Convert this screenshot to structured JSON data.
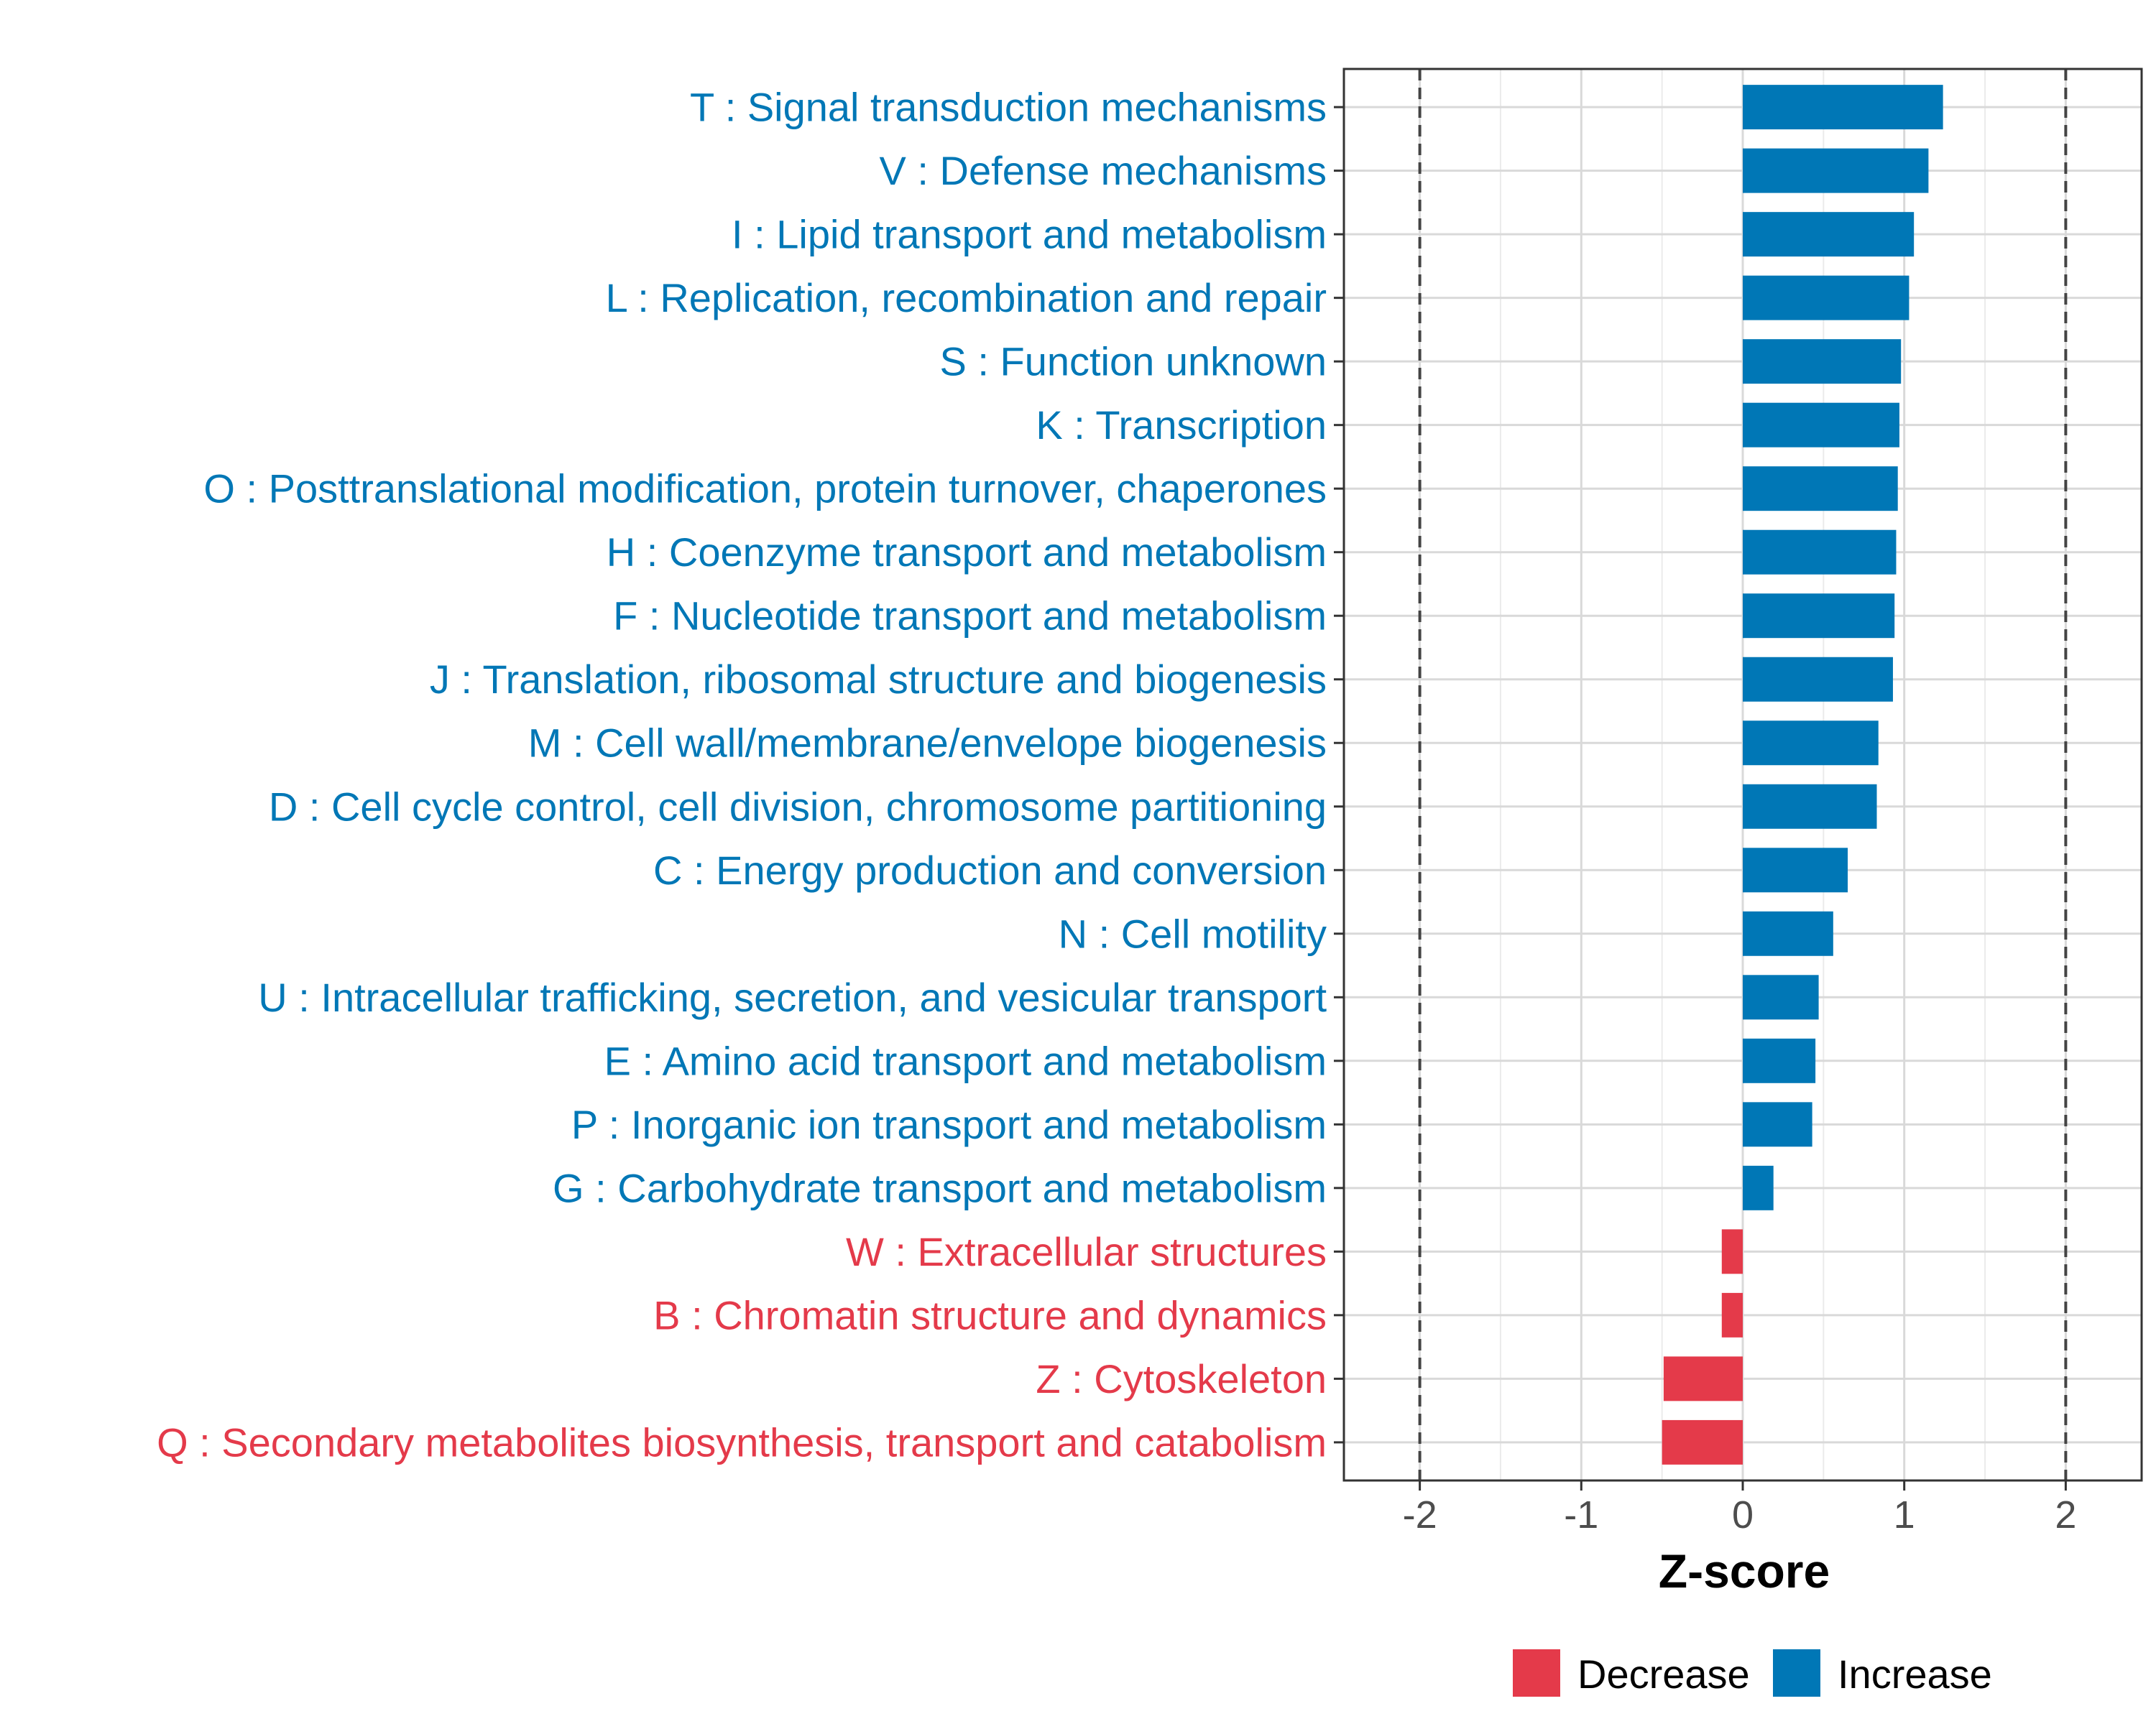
{
  "chart_data": {
    "type": "bar",
    "orientation": "horizontal",
    "xlabel": "Z-score",
    "ylabel": "",
    "xlim": [
      -2.47,
      2.47
    ],
    "x_ticks": [
      -2,
      -1,
      0,
      1,
      2
    ],
    "x_tick_labels": [
      "-2",
      "-1",
      "0",
      "1",
      "2"
    ],
    "reference_lines": [
      -2,
      2
    ],
    "grid": true,
    "categories": [
      "T : Signal transduction mechanisms",
      "V : Defense mechanisms",
      "I : Lipid transport and metabolism",
      "L : Replication, recombination and repair",
      "S : Function unknown",
      "K : Transcription",
      "O : Posttranslational modification, protein turnover, chaperones",
      "H : Coenzyme transport and metabolism",
      "F : Nucleotide transport and metabolism",
      "J : Translation, ribosomal structure and biogenesis",
      "M : Cell wall/membrane/envelope biogenesis",
      "D : Cell cycle control, cell division, chromosome partitioning",
      "C : Energy production and conversion",
      "N : Cell motility",
      "U : Intracellular trafficking, secretion, and vesicular transport",
      "E : Amino acid transport and metabolism",
      "P : Inorganic ion transport and metabolism",
      "G : Carbohydrate transport and metabolism",
      "W : Extracellular structures",
      "B : Chromatin structure and dynamics",
      "Z : Cytoskeleton",
      "Q : Secondary metabolites biosynthesis, transport and catabolism"
    ],
    "values": [
      1.24,
      1.15,
      1.06,
      1.03,
      0.98,
      0.97,
      0.96,
      0.95,
      0.94,
      0.93,
      0.84,
      0.83,
      0.65,
      0.56,
      0.47,
      0.45,
      0.43,
      0.19,
      -0.13,
      -0.13,
      -0.49,
      -0.5
    ],
    "groups": [
      "Increase",
      "Increase",
      "Increase",
      "Increase",
      "Increase",
      "Increase",
      "Increase",
      "Increase",
      "Increase",
      "Increase",
      "Increase",
      "Increase",
      "Increase",
      "Increase",
      "Increase",
      "Increase",
      "Increase",
      "Increase",
      "Decrease",
      "Decrease",
      "Decrease",
      "Decrease"
    ],
    "legend": [
      {
        "name": "Decrease",
        "color": "#e43a4a"
      },
      {
        "name": "Increase",
        "color": "#0077b6"
      }
    ],
    "legend_position": "bottom"
  }
}
